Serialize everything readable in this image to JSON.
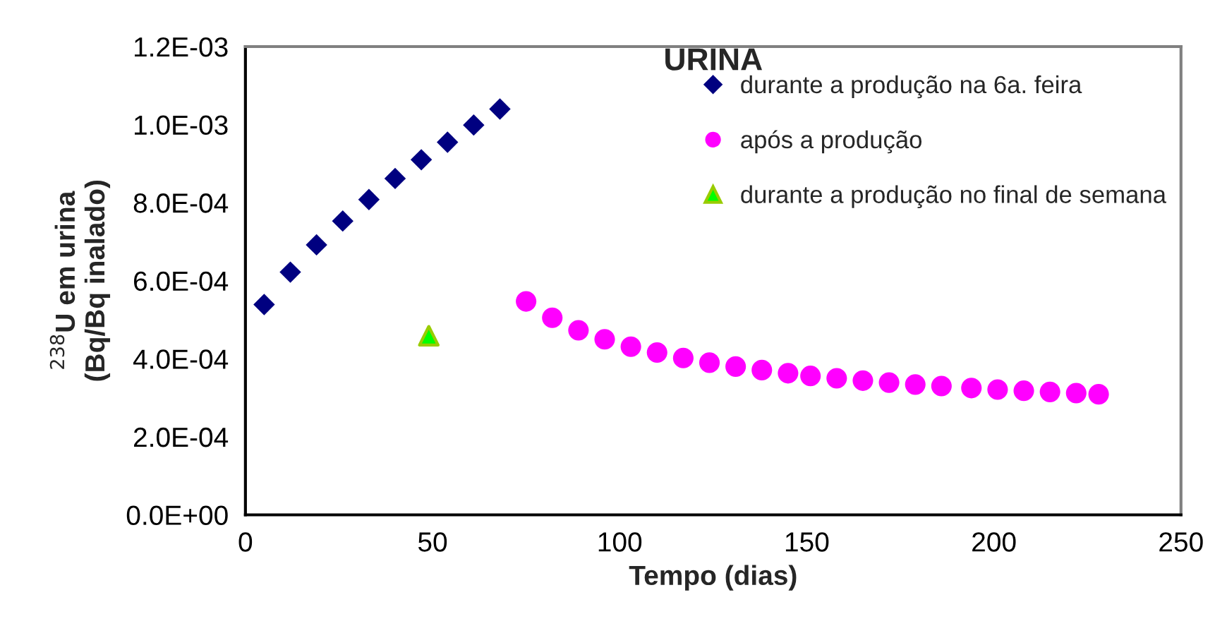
{
  "chart_data": {
    "type": "scatter",
    "title": "URINA",
    "xlabel": "Tempo (dias)",
    "ylabel": "$^{238}$U em urina\n(Bq/Bq inalado)",
    "xlim": [
      0,
      250
    ],
    "xticks": [
      0,
      50,
      100,
      150,
      200,
      250
    ],
    "ylim": [
      0,
      0.0012
    ],
    "yticks": [
      {
        "value": 0,
        "label": "0.0E+00"
      },
      {
        "value": 0.0002,
        "label": "2.0E-04"
      },
      {
        "value": 0.0004,
        "label": "4.0E-04"
      },
      {
        "value": 0.0006,
        "label": "6.0E-04"
      },
      {
        "value": 0.0008,
        "label": "8.0E-04"
      },
      {
        "value": 0.001,
        "label": "1.0E-03"
      },
      {
        "value": 0.0012,
        "label": "1.2E-03"
      }
    ],
    "grid": false,
    "legend": "top right",
    "series": [
      {
        "name": "durante a produção na 6a. feira",
        "color": "#000080",
        "marker": "diamond",
        "x": [
          5,
          12,
          19,
          26,
          33,
          40,
          47,
          54,
          61,
          68
        ],
        "values": [
          0.000539,
          0.000622,
          0.000692,
          0.000753,
          0.000808,
          0.000862,
          0.00091,
          0.000955,
          0.000999,
          0.00104
        ]
      },
      {
        "name": "após a produção",
        "color": "#ff00ff",
        "marker": "circle",
        "x": [
          75,
          82,
          89,
          96,
          103,
          110,
          117,
          124,
          131,
          138,
          145,
          151,
          158,
          165,
          172,
          179,
          186,
          194,
          201,
          208,
          215,
          222,
          228
        ],
        "values": [
          0.000547,
          0.000505,
          0.000473,
          0.00045,
          0.000431,
          0.000416,
          0.000402,
          0.00039,
          0.00038,
          0.000371,
          0.000363,
          0.000356,
          0.00035,
          0.000344,
          0.000339,
          0.000334,
          0.00033,
          0.000325,
          0.000321,
          0.000318,
          0.000315,
          0.000312,
          0.000309
        ]
      },
      {
        "name": "durante a produção no final de semana",
        "color": "#00ff00",
        "marker": "triangle",
        "x": [
          49
        ],
        "values": [
          0.000459
        ]
      }
    ]
  }
}
